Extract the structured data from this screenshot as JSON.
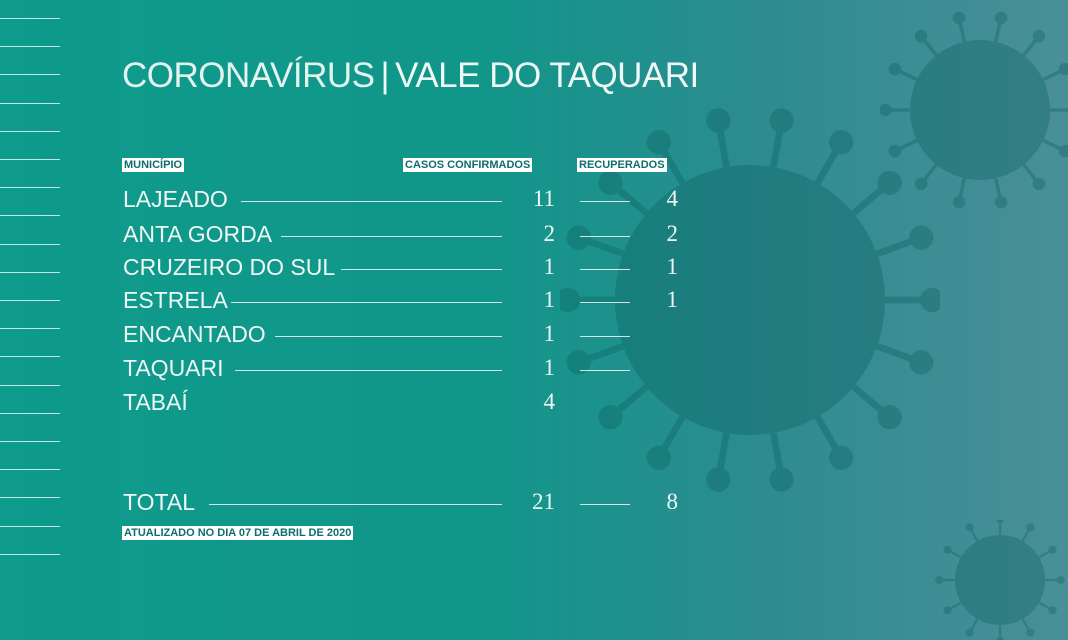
{
  "title": {
    "part1": "CORONAVÍRUS",
    "separator": "|",
    "part2": "VALE DO TAQUARI"
  },
  "headers": {
    "municipio": "MUNICÍPIO",
    "confirmados": "CASOS CONFIRMADOS",
    "recuperados": "RECUPERADOS"
  },
  "rows": [
    {
      "name": "LAJEADO",
      "confirmados": "11",
      "recuperados": "4"
    },
    {
      "name": "ANTA GORDA",
      "confirmados": "2",
      "recuperados": "2"
    },
    {
      "name": "CRUZEIRO DO SUL",
      "confirmados": "1",
      "recuperados": "1"
    },
    {
      "name": "ESTRELA",
      "confirmados": "1",
      "recuperados": "1"
    },
    {
      "name": "ENCANTADO",
      "confirmados": "1",
      "recuperados": ""
    },
    {
      "name": "TAQUARI",
      "confirmados": "1",
      "recuperados": ""
    },
    {
      "name": "TABAÍ",
      "confirmados": "4",
      "recuperados": null
    }
  ],
  "total": {
    "name": "TOTAL",
    "confirmados": "21",
    "recuperados": "8"
  },
  "updated": "ATUALIZADO NO DIA 07 DE ABRIL DE 2020",
  "colors": {
    "background": "#0e9b8b",
    "label_text": "#0d6e6a",
    "label_bg": "#ffffff"
  },
  "icons": {
    "decoration": "coronavirus-illustration"
  }
}
